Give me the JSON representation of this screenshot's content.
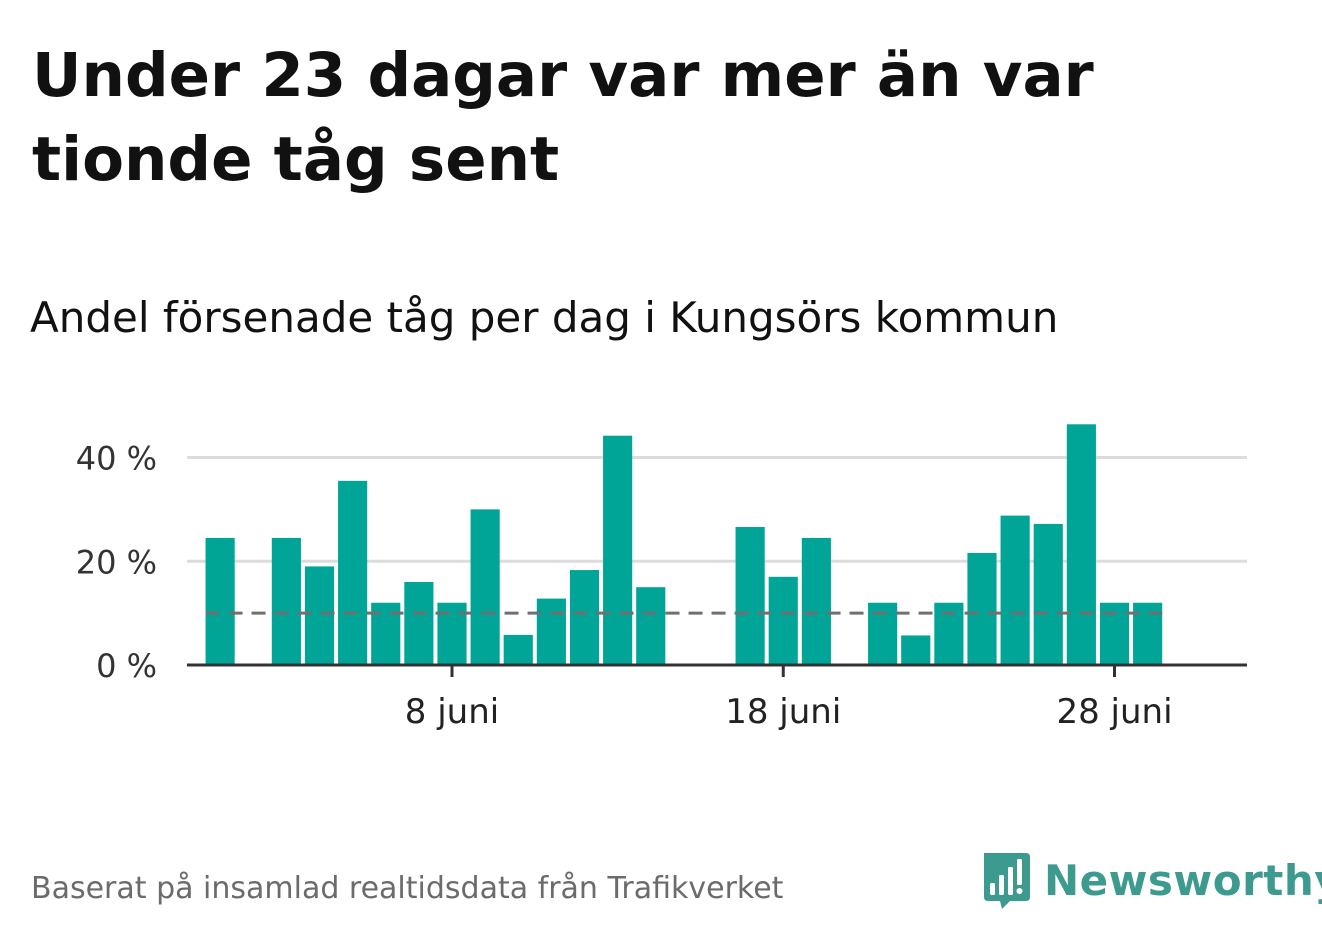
{
  "title": "Under 23 dagar var mer än var tionde tåg sent",
  "subtitle": "Andel försenade tåg per dag i Kungsörs kommun",
  "footer": "Baserat på insamlad realtidsdata från Trafikverket",
  "brand": "Newsworthy",
  "colors": {
    "bar": "#00a598",
    "grid": "#dcdcdc",
    "axis": "#333333",
    "reference_line": "#707070",
    "brand": "#3d9a8f"
  },
  "chart_data": {
    "type": "bar",
    "x_unit": "day of June",
    "x": [
      1,
      3,
      4,
      5,
      6,
      7,
      8,
      9,
      10,
      11,
      12,
      13,
      14,
      17,
      18,
      19,
      21,
      22,
      23,
      24,
      25,
      26,
      27,
      28,
      29
    ],
    "values": [
      24.5,
      24.5,
      19,
      35.5,
      12,
      16,
      12,
      30,
      5.8,
      12.8,
      18.3,
      44.2,
      15,
      26.6,
      17,
      24.5,
      12,
      5.7,
      12,
      21.6,
      28.8,
      27.2,
      46.4,
      12,
      12
    ],
    "reference_value": 10,
    "ylim": [
      0,
      48
    ],
    "xlim": [
      0,
      32
    ],
    "yticks": [
      0,
      20,
      40
    ],
    "ytick_labels": [
      "0 %",
      "20 %",
      "40 %"
    ],
    "xticks": [
      8,
      18,
      28
    ],
    "xtick_labels": [
      "8 juni",
      "18 juni",
      "28 juni"
    ],
    "grid": true,
    "xlabel": "",
    "ylabel": ""
  }
}
